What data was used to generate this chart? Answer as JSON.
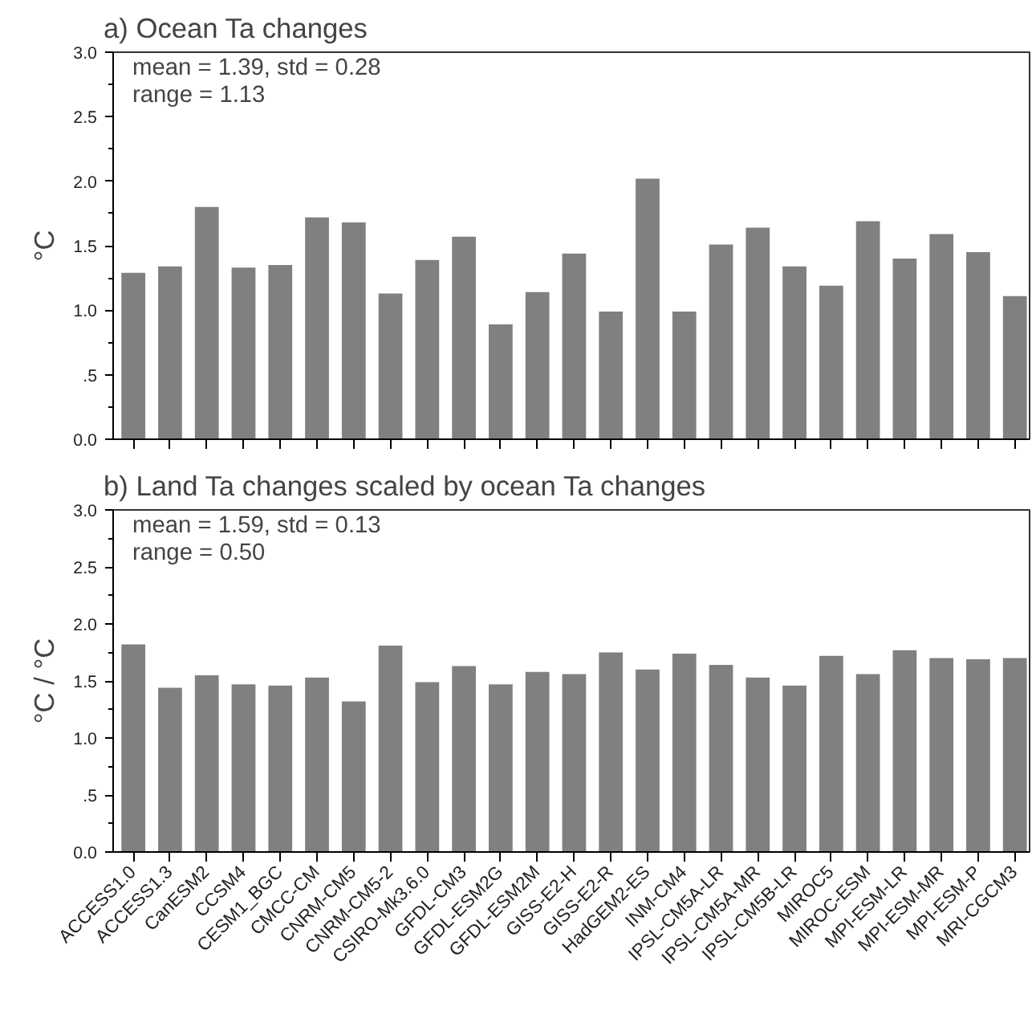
{
  "chart_data": [
    {
      "type": "bar",
      "title": "a) Ocean Ta changes",
      "ylabel": "°C",
      "categories": [
        null,
        null,
        null,
        null,
        null,
        null,
        null,
        null,
        null,
        null,
        null,
        null,
        null,
        null,
        null,
        null,
        null,
        null,
        null,
        null,
        null,
        null,
        null,
        null,
        null
      ],
      "values": [
        1.29,
        1.34,
        1.8,
        1.33,
        1.35,
        1.72,
        1.68,
        1.13,
        1.39,
        1.57,
        0.89,
        1.14,
        1.44,
        0.99,
        2.02,
        0.99,
        1.51,
        1.64,
        1.34,
        1.19,
        1.69,
        1.4,
        1.59,
        1.45,
        1.11
      ],
      "color": "#808080",
      "ylim": [
        0,
        3
      ],
      "yticks": [
        {
          "value": 0,
          "label": "0.0"
        },
        {
          "value": 0.25,
          "label": null
        },
        {
          "value": 0.5,
          "label": ".5"
        },
        {
          "value": 0.75,
          "label": null
        },
        {
          "value": 1,
          "label": "1.0"
        },
        {
          "value": 1.25,
          "label": null
        },
        {
          "value": 1.5,
          "label": "1.5"
        },
        {
          "value": 1.75,
          "label": null
        },
        {
          "value": 2,
          "label": "2.0"
        },
        {
          "value": 2.25,
          "label": null
        },
        {
          "value": 2.5,
          "label": "2.5"
        },
        {
          "value": 2.75,
          "label": null
        },
        {
          "value": 3,
          "label": "3.0"
        }
      ],
      "annotations": [
        "mean = 1.39, std = 0.28",
        "range = 1.13"
      ],
      "tick_labels": "y"
    },
    {
      "type": "bar",
      "title": "b) Land Ta changes scaled by ocean Ta changes",
      "ylabel": "°C / °C",
      "categories": [
        "ACCESS1.0",
        "ACCESS1.3",
        "CanESM2",
        "CCSM4",
        "CESM1_BGC",
        "CMCC-CM",
        "CNRM-CM5",
        "CNRM-CM5-2",
        "CSIRO-Mk3.6.0",
        "GFDL-CM3",
        "GFDL-ESM2G",
        "GFDL-ESM2M",
        "GISS-E2-H",
        "GISS-E2-R",
        "HadGEM2-ES",
        "INM-CM4",
        "IPSL-CM5A-LR",
        "IPSL-CM5A-MR",
        "IPSL-CM5B-LR",
        "MIROC5",
        "MIROC-ESM",
        "MPI-ESM-LR",
        "MPI-ESM-MR",
        "MPI-ESM-P",
        "MRI-CGCM3"
      ],
      "values": [
        1.82,
        1.44,
        1.55,
        1.47,
        1.46,
        1.53,
        1.32,
        1.81,
        1.49,
        1.63,
        1.47,
        1.58,
        1.56,
        1.75,
        1.6,
        1.74,
        1.64,
        1.53,
        1.46,
        1.72,
        1.56,
        1.77,
        1.7,
        1.69,
        1.7
      ],
      "color": "#808080",
      "ylim": [
        0,
        3
      ],
      "yticks": [
        {
          "value": 0,
          "label": "0.0"
        },
        {
          "value": 0.25,
          "label": null
        },
        {
          "value": 0.5,
          "label": ".5"
        },
        {
          "value": 0.75,
          "label": null
        },
        {
          "value": 1,
          "label": "1.0"
        },
        {
          "value": 1.25,
          "label": null
        },
        {
          "value": 1.5,
          "label": "1.5"
        },
        {
          "value": 1.75,
          "label": null
        },
        {
          "value": 2,
          "label": "2.0"
        },
        {
          "value": 2.25,
          "label": null
        },
        {
          "value": 2.5,
          "label": "2.5"
        },
        {
          "value": 2.75,
          "label": null
        },
        {
          "value": 3,
          "label": "3.0"
        }
      ],
      "annotations": [
        "mean = 1.59, std = 0.13",
        "range = 0.50"
      ]
    }
  ]
}
